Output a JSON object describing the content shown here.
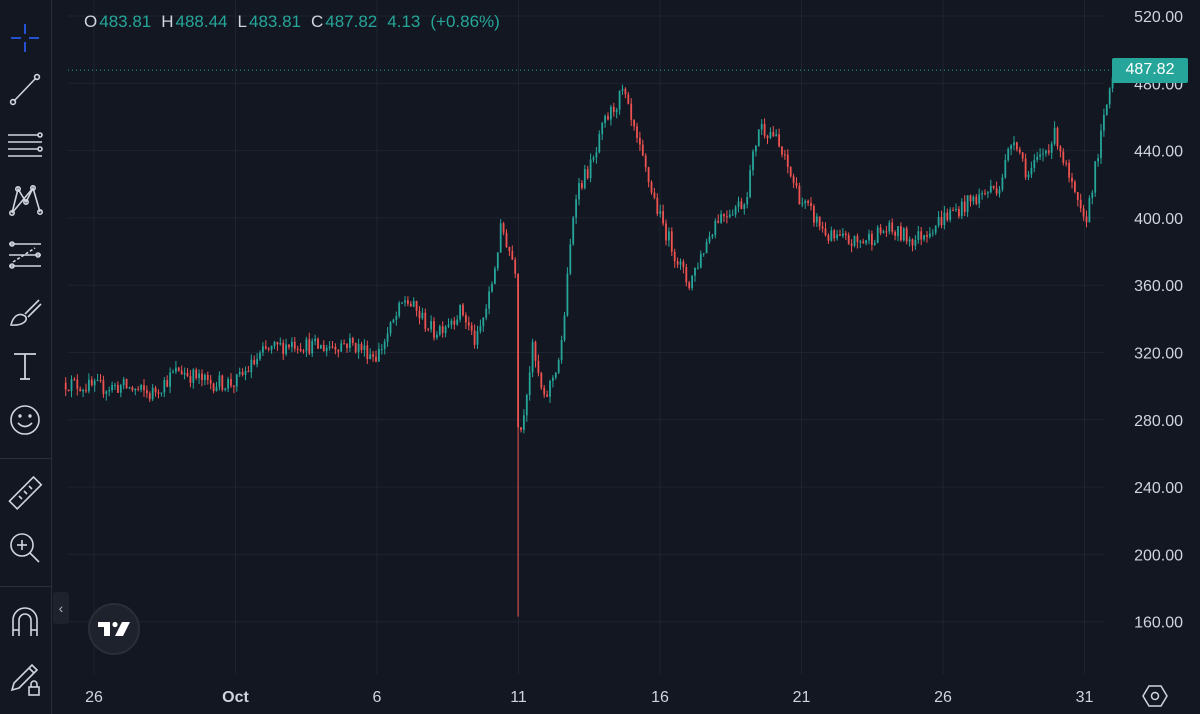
{
  "legend": {
    "open_label": "O",
    "open_value": "483.81",
    "high_label": "H",
    "high_value": "488.44",
    "low_label": "L",
    "low_value": "483.81",
    "close_label": "C",
    "close_value": "487.82",
    "change": "4.13",
    "change_percent": "(+0.86%)"
  },
  "last_price_label": "487.82",
  "toolbar": {
    "tools": [
      "crosshair-icon",
      "trend-line-icon",
      "horizontal-lines-icon",
      "pattern-icon",
      "forecast-icon",
      "brush-icon",
      "text-icon",
      "emoji-icon",
      "ruler-icon",
      "zoom-in-icon",
      "magnet-icon",
      "lock-drawing-icon"
    ],
    "collapse_label": "‹"
  },
  "colors": {
    "background": "#131722",
    "up": "#26a69a",
    "down": "#ef5350",
    "grid": "#1f2330",
    "text": "#d1d4dc",
    "price_tag": "#26a69a"
  },
  "chart_data": {
    "type": "candlestick",
    "title": "",
    "y_axis_ticks": [
      "520.00",
      "480.00",
      "440.00",
      "400.00",
      "360.00",
      "320.00",
      "280.00",
      "240.00",
      "200.00",
      "160.00"
    ],
    "x_axis_ticks": [
      "26",
      "Oct",
      "6",
      "11",
      "16",
      "21",
      "26",
      "31"
    ],
    "ylim": [
      147,
      524
    ],
    "grid": true,
    "last_price": 487.82,
    "anchors": [
      {
        "date": "Sep 25",
        "price": 302
      },
      {
        "date": "Sep 26",
        "price": 299
      },
      {
        "date": "Sep 27",
        "price": 300
      },
      {
        "date": "Sep 28",
        "price": 295
      },
      {
        "date": "Sep 29",
        "price": 310
      },
      {
        "date": "Sep 30",
        "price": 302
      },
      {
        "date": "Oct 1",
        "price": 302
      },
      {
        "date": "Oct 2",
        "price": 320
      },
      {
        "date": "Oct 3",
        "price": 326
      },
      {
        "date": "Oct 4",
        "price": 323
      },
      {
        "date": "Oct 5",
        "price": 326
      },
      {
        "date": "Oct 6",
        "price": 318
      },
      {
        "date": "Oct 7",
        "price": 352
      },
      {
        "date": "Oct 8",
        "price": 332
      },
      {
        "date": "Oct 9",
        "price": 345
      },
      {
        "date": "Oct 9.5",
        "price": 325
      },
      {
        "date": "Oct 10",
        "price": 355
      },
      {
        "date": "Oct 10.4",
        "price": 395
      },
      {
        "date": "Oct 10.9",
        "price": 370
      },
      {
        "date": "Oct 11",
        "price": 265
      },
      {
        "date": "Oct 11.5",
        "price": 322
      },
      {
        "date": "Oct 11.9",
        "price": 290
      },
      {
        "date": "Oct 12.5",
        "price": 320
      },
      {
        "date": "Oct 13",
        "price": 415
      },
      {
        "date": "Oct 13.7",
        "price": 435
      },
      {
        "date": "Oct 14",
        "price": 455
      },
      {
        "date": "Oct 14.7",
        "price": 475
      },
      {
        "date": "Oct 15",
        "price": 455
      },
      {
        "date": "Oct 16",
        "price": 400
      },
      {
        "date": "Oct 17",
        "price": 360
      },
      {
        "date": "Oct 18",
        "price": 400
      },
      {
        "date": "Oct 19",
        "price": 410
      },
      {
        "date": "Oct 19.5",
        "price": 455
      },
      {
        "date": "Oct 20",
        "price": 450
      },
      {
        "date": "Oct 21",
        "price": 410
      },
      {
        "date": "Oct 22",
        "price": 388
      },
      {
        "date": "Oct 23",
        "price": 385
      },
      {
        "date": "Oct 24",
        "price": 393
      },
      {
        "date": "Oct 25",
        "price": 387
      },
      {
        "date": "Oct 26",
        "price": 400
      },
      {
        "date": "Oct 27",
        "price": 410
      },
      {
        "date": "Oct 28",
        "price": 420
      },
      {
        "date": "Oct 28.5",
        "price": 450
      },
      {
        "date": "Oct 29",
        "price": 425
      },
      {
        "date": "Oct 30",
        "price": 450
      },
      {
        "date": "Oct 30.5",
        "price": 420
      },
      {
        "date": "Oct 31",
        "price": 395
      },
      {
        "date": "Oct 31.5",
        "price": 440
      },
      {
        "date": "Nov 1",
        "price": 487.82
      }
    ],
    "events": [
      {
        "date": "Oct 11",
        "low": 163
      }
    ]
  }
}
